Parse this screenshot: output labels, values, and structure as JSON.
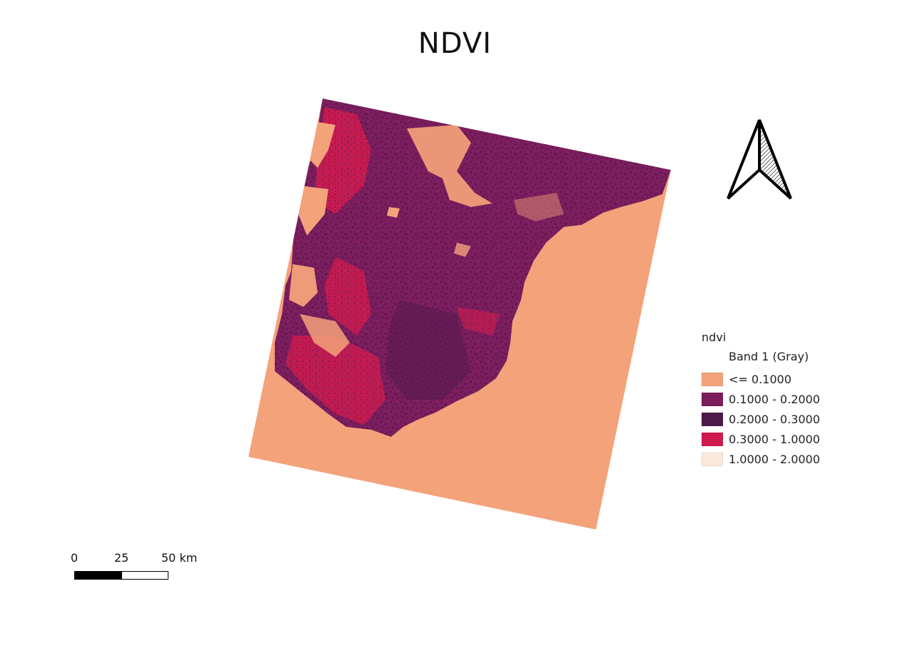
{
  "title": "NDVI",
  "legend": {
    "layer": "ndvi",
    "band": "Band 1 (Gray)",
    "classes": [
      {
        "label": "<= 0.1000",
        "color": "#f4a27a"
      },
      {
        "label": "0.1000 - 0.2000",
        "color": "#7c1d5e"
      },
      {
        "label": "0.2000 - 0.3000",
        "color": "#4d1a4b"
      },
      {
        "label": "0.3000 - 1.0000",
        "color": "#cf1b4d"
      },
      {
        "label": "1.0000 - 2.0000",
        "color": "#fbeadc"
      }
    ]
  },
  "scalebar": {
    "labels": [
      "0",
      "25",
      "50 km"
    ]
  },
  "north_arrow": {
    "icon": "north-arrow-icon"
  }
}
